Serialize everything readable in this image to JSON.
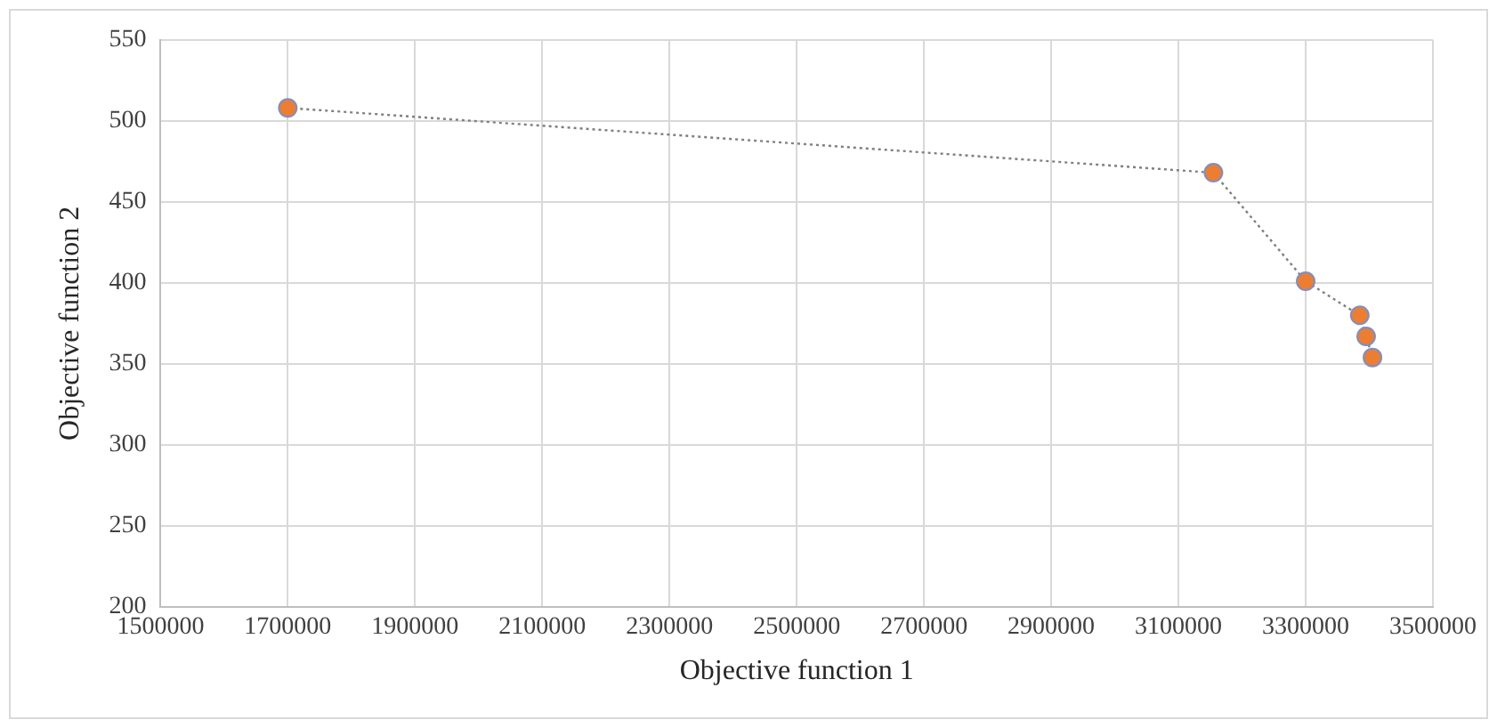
{
  "chart_data": {
    "type": "line",
    "xlabel": "Objective function 1",
    "ylabel": "Objective function 2",
    "x": [
      1700000,
      3155000,
      3300000,
      3385000,
      3395000,
      3405000
    ],
    "series": [
      {
        "color": "#ed7d31",
        "values": [
          508,
          468,
          401,
          380,
          367,
          354
        ]
      }
    ],
    "xlim": [
      1500000,
      3500000
    ],
    "xticks": [
      1500000,
      1700000,
      1900000,
      2100000,
      2300000,
      2500000,
      2700000,
      2900000,
      3100000,
      3300000,
      3500000
    ],
    "ylim": [
      200,
      550
    ],
    "yticks": [
      200,
      250,
      300,
      350,
      400,
      450,
      500,
      550
    ],
    "grid": true,
    "legend": false,
    "marker": "circle",
    "line_style": "dotted"
  }
}
